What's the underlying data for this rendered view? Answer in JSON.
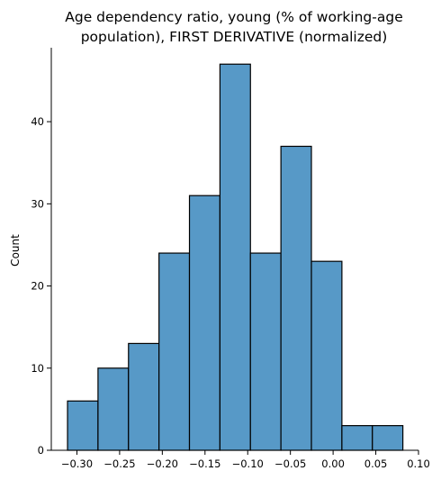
{
  "chart_data": {
    "type": "histogram",
    "title_lines": [
      "Age dependency ratio, young (% of working-age",
      "population), FIRST DERIVATIVE (normalized)"
    ],
    "xlabel": "",
    "ylabel": "Count",
    "xlim": [
      -0.33,
      0.1
    ],
    "ylim": [
      0,
      49
    ],
    "bin_edges": [
      -0.311,
      -0.2753,
      -0.2396,
      -0.2039,
      -0.1682,
      -0.1325,
      -0.0968,
      -0.0611,
      -0.0254,
      0.0103,
      0.046,
      0.0817
    ],
    "counts": [
      6,
      10,
      13,
      24,
      31,
      47,
      24,
      37,
      23,
      3,
      3
    ],
    "x_ticks": [
      -0.3,
      -0.25,
      -0.2,
      -0.15,
      -0.1,
      -0.05,
      0.0,
      0.05,
      0.1
    ],
    "x_tick_labels": [
      "−0.30",
      "−0.25",
      "−0.20",
      "−0.15",
      "−0.10",
      "−0.05",
      "0.00",
      "0.05",
      "0.10"
    ],
    "y_ticks": [
      0,
      10,
      20,
      30,
      40
    ],
    "y_tick_labels": [
      "0",
      "10",
      "20",
      "30",
      "40"
    ],
    "bar_color": "#5799c7",
    "edge_color": "#000000",
    "grid": false,
    "spines": [
      "left",
      "bottom"
    ]
  }
}
